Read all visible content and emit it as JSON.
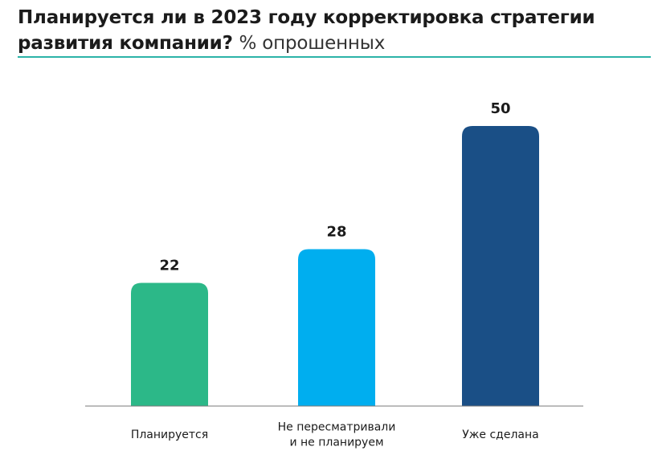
{
  "header": {
    "title": "Планируется ли в 2023 году корректировка стратегии развития компании?",
    "subtitle": "% опрошенных",
    "rule_color": "#2cb3a8"
  },
  "chart_data": {
    "type": "bar",
    "title": "Планируется ли в 2023 году корректировка стратегии развития компании?",
    "subtitle": "% опрошенных",
    "categories": [
      [
        "Планируется"
      ],
      [
        "Не пересматривали",
        "и не планируем"
      ],
      [
        "Уже сделана"
      ]
    ],
    "values": [
      22,
      28,
      50
    ],
    "colors": [
      "#2cb888",
      "#00aeef",
      "#1a4f86"
    ],
    "ylim": [
      0,
      50
    ],
    "grid": false,
    "legend": "none",
    "data_labels": true
  }
}
